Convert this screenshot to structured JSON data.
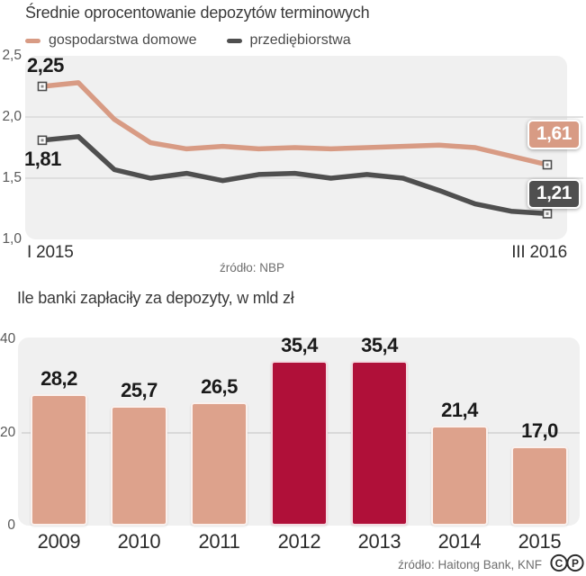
{
  "colors": {
    "households": "#d89b84",
    "enterprises": "#4f4f4f",
    "bar": "#dda28c",
    "bar_highlight": "#b01039",
    "plot_bg": "#f0f0f0",
    "grid": "#d9d9d9",
    "axis_text": "#595959"
  },
  "chart_data": [
    {
      "type": "line",
      "title": "Średnie oprocentowanie depozytów terminowych",
      "source": "źródło: NBP",
      "x_start_label": "I 2015",
      "x_end_label": "III 2016",
      "y_ticks": [
        "2,5",
        "2,0",
        "1,5",
        "1,0"
      ],
      "ylim": [
        1.0,
        2.5
      ],
      "grid": true,
      "legend_position": "top",
      "series": [
        {
          "name": "gospodarstwa domowe",
          "color": "#d89b84",
          "start_label": "2,25",
          "end_label": "1,61",
          "values": [
            2.25,
            2.28,
            1.98,
            1.79,
            1.74,
            1.76,
            1.74,
            1.75,
            1.74,
            1.75,
            1.76,
            1.77,
            1.75,
            1.68,
            1.61
          ]
        },
        {
          "name": "przediębiorstwa",
          "color": "#4f4f4f",
          "start_label": "1,81",
          "end_label": "1,21",
          "values": [
            1.81,
            1.84,
            1.57,
            1.5,
            1.54,
            1.48,
            1.53,
            1.54,
            1.5,
            1.53,
            1.5,
            1.4,
            1.29,
            1.23,
            1.21
          ]
        }
      ]
    },
    {
      "type": "bar",
      "title": "Ile banki zapłaciły za depozyty, w mld zł",
      "source": "źródło: Haitong Bank, KNF",
      "y_ticks": [
        "40",
        "20",
        "0"
      ],
      "ylim": [
        0,
        40
      ],
      "categories": [
        "2009",
        "2010",
        "2011",
        "2012",
        "2013",
        "2014",
        "2015"
      ],
      "values": [
        28.2,
        25.7,
        26.5,
        35.4,
        35.4,
        21.4,
        17.0
      ],
      "labels": [
        "28,2",
        "25,7",
        "26,5",
        "35,4",
        "35,4",
        "21,4",
        "17,0"
      ],
      "highlighted": [
        false,
        false,
        false,
        true,
        true,
        false,
        false
      ],
      "bar_color": "#dda28c",
      "highlight_color": "#b01039"
    }
  ],
  "footer": {
    "license_letters": [
      "C",
      "P"
    ]
  }
}
